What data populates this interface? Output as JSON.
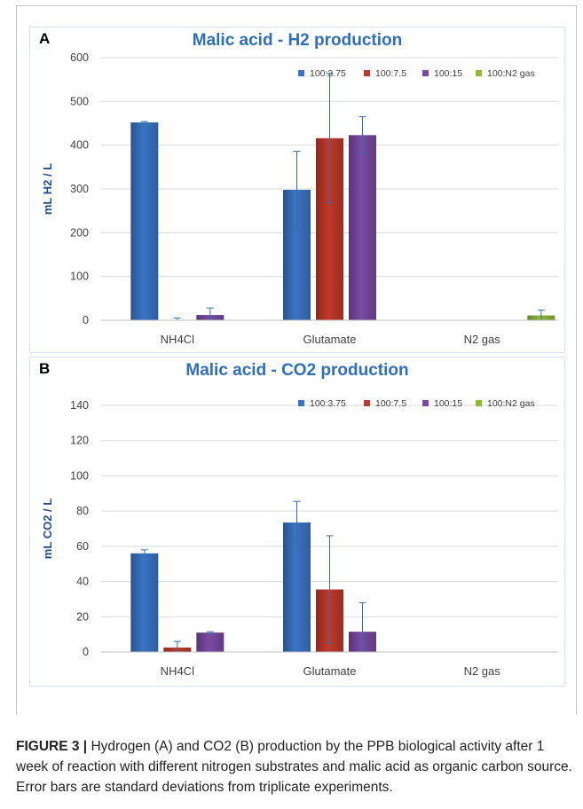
{
  "caption": {
    "label": "FIGURE 3 |",
    "text": "Hydrogen (A) and CO2 (B) production by the PPB biological activity after 1 week of reaction with different nitrogen substrates and malic acid as organic carbon source. Error bars are standard deviations from triplicate experiments."
  },
  "chart_data": [
    {
      "panel": "A",
      "type": "bar",
      "title": "Malic acid - H2 production",
      "ylabel": "mL H2 / L",
      "xlabel": "",
      "ylim": [
        0,
        600
      ],
      "yticks": [
        0,
        100,
        200,
        300,
        400,
        500,
        600
      ],
      "categories": [
        "NH4Cl",
        "Glutamate",
        "N2 gas"
      ],
      "legend_position": "top-right",
      "grid": true,
      "series": [
        {
          "name": "100:3.75",
          "color": "#3a74c4",
          "values": [
            452,
            298,
            null
          ],
          "errors": [
            2,
            88,
            null
          ]
        },
        {
          "name": "100:7.5",
          "color": "#c0392b",
          "values": [
            1,
            416,
            null
          ],
          "errors": [
            4,
            148,
            null
          ]
        },
        {
          "name": "100:15",
          "color": "#7a4aa3",
          "values": [
            12,
            423,
            null
          ],
          "errors": [
            16,
            42,
            null
          ]
        },
        {
          "name": "100:N2 gas",
          "color": "#8db83a",
          "values": [
            null,
            null,
            11
          ],
          "errors": [
            null,
            null,
            12
          ]
        }
      ]
    },
    {
      "panel": "B",
      "type": "bar",
      "title": "Malic acid - CO2 production",
      "ylabel": "mL CO2 / L",
      "xlabel": "",
      "ylim": [
        0,
        140
      ],
      "yticks": [
        0,
        20,
        40,
        60,
        80,
        100,
        120,
        140
      ],
      "categories": [
        "NH4Cl",
        "Glutamate",
        "N2 gas"
      ],
      "legend_position": "top-right",
      "grid": true,
      "series": [
        {
          "name": "100:3.75",
          "color": "#3a74c4",
          "values": [
            56,
            73.5,
            null
          ],
          "errors": [
            2,
            12,
            null
          ]
        },
        {
          "name": "100:7.5",
          "color": "#c0392b",
          "values": [
            2.5,
            35.5,
            null
          ],
          "errors": [
            3.5,
            30.5,
            null
          ]
        },
        {
          "name": "100:15",
          "color": "#7a4aa3",
          "values": [
            11,
            11.5,
            null
          ],
          "errors": [
            0.5,
            16.5,
            null
          ]
        },
        {
          "name": "100:N2 gas",
          "color": "#8db83a",
          "values": [
            null,
            null,
            null
          ],
          "errors": [
            null,
            null,
            null
          ]
        }
      ]
    }
  ]
}
